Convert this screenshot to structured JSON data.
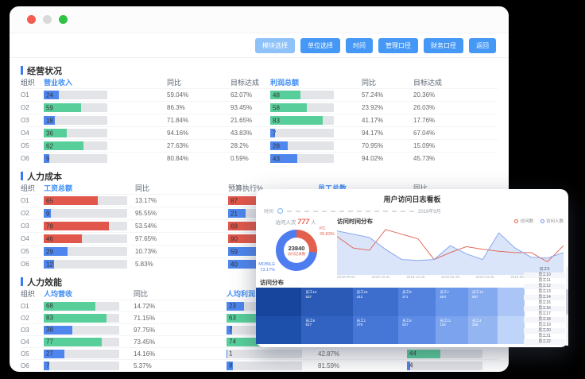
{
  "window": {
    "controls": [
      {
        "name": "close",
        "color": "red"
      },
      {
        "name": "minimize",
        "color": "gray"
      },
      {
        "name": "maximize",
        "color": "green"
      }
    ],
    "toolbar": {
      "buttons": [
        {
          "label": "模块选择",
          "variant": "light"
        },
        {
          "label": "单位选择"
        },
        {
          "label": "时间"
        },
        {
          "label": "管理口径"
        },
        {
          "label": "财务口径"
        },
        {
          "label": "返回"
        }
      ]
    }
  },
  "sections": [
    {
      "id": "business-status",
      "title": "经营状况",
      "grid": "g1",
      "cls": "s1",
      "headers": [
        {
          "label": "组织"
        },
        {
          "label": "营业收入",
          "accent": true
        },
        {
          "label": "同比"
        },
        {
          "label": "目标达成"
        },
        {
          "label": "利润总额",
          "accent": true
        },
        {
          "label": "同比"
        },
        {
          "label": "目标达成"
        }
      ],
      "rows": [
        {
          "org": "O1",
          "cells": [
            {
              "k": "bar",
              "v": 24,
              "c": "blue"
            },
            {
              "k": "txt",
              "v": "59.04%"
            },
            {
              "k": "txt",
              "v": "62.07%"
            },
            {
              "k": "bar",
              "v": 48,
              "c": "green"
            },
            {
              "k": "txt",
              "v": "57.24%"
            },
            {
              "k": "txt",
              "v": "20.36%"
            }
          ]
        },
        {
          "org": "O2",
          "cells": [
            {
              "k": "bar",
              "v": 59,
              "c": "green"
            },
            {
              "k": "txt",
              "v": "86.3%"
            },
            {
              "k": "txt",
              "v": "93.45%"
            },
            {
              "k": "bar",
              "v": 58,
              "c": "green"
            },
            {
              "k": "txt",
              "v": "23.92%"
            },
            {
              "k": "txt",
              "v": "26.03%"
            }
          ]
        },
        {
          "org": "O3",
          "cells": [
            {
              "k": "bar",
              "v": 18,
              "c": "blue"
            },
            {
              "k": "txt",
              "v": "71.84%"
            },
            {
              "k": "txt",
              "v": "21.65%"
            },
            {
              "k": "bar",
              "v": 83,
              "c": "green"
            },
            {
              "k": "txt",
              "v": "41.17%"
            },
            {
              "k": "txt",
              "v": "17.76%"
            }
          ]
        },
        {
          "org": "O4",
          "cells": [
            {
              "k": "bar",
              "v": 36,
              "c": "green"
            },
            {
              "k": "txt",
              "v": "94.16%"
            },
            {
              "k": "txt",
              "v": "43.83%"
            },
            {
              "k": "bar",
              "v": 7,
              "c": "blue"
            },
            {
              "k": "txt",
              "v": "94.17%"
            },
            {
              "k": "txt",
              "v": "67.04%"
            }
          ]
        },
        {
          "org": "O5",
          "cells": [
            {
              "k": "bar",
              "v": 62,
              "c": "green"
            },
            {
              "k": "txt",
              "v": "27.63%"
            },
            {
              "k": "txt",
              "v": "28.2%"
            },
            {
              "k": "bar",
              "v": 28,
              "c": "blue"
            },
            {
              "k": "txt",
              "v": "70.95%"
            },
            {
              "k": "txt",
              "v": "15.09%"
            }
          ]
        },
        {
          "org": "O6",
          "cells": [
            {
              "k": "bar",
              "v": 9,
              "c": "blue"
            },
            {
              "k": "txt",
              "v": "80.84%"
            },
            {
              "k": "txt",
              "v": "0.59%"
            },
            {
              "k": "bar",
              "v": 43,
              "c": "blue"
            },
            {
              "k": "txt",
              "v": "94.02%"
            },
            {
              "k": "txt",
              "v": "45.73%"
            }
          ]
        }
      ]
    },
    {
      "id": "hr-cost",
      "title": "人力成本",
      "grid": "g2",
      "cls": "s2",
      "headers": [
        {
          "label": "组织"
        },
        {
          "label": "工资总额",
          "accent": true
        },
        {
          "label": "同比"
        },
        {
          "label": "预算执行%"
        },
        {
          "label": "员工总数",
          "accent": true
        },
        {
          "label": "同比"
        }
      ],
      "rows": [
        {
          "org": "O1",
          "cells": [
            {
              "k": "bar",
              "v": 65,
              "c": "red"
            },
            {
              "k": "txt",
              "v": "13.17%"
            },
            {
              "k": "bar",
              "v": 87,
              "c": "red"
            },
            {
              "k": "none"
            },
            {
              "k": "none"
            }
          ]
        },
        {
          "org": "O2",
          "cells": [
            {
              "k": "bar",
              "v": 9,
              "c": "blue"
            },
            {
              "k": "txt",
              "v": "95.55%"
            },
            {
              "k": "bar",
              "v": 21,
              "c": "blue"
            },
            {
              "k": "none"
            },
            {
              "k": "none"
            }
          ]
        },
        {
          "org": "O3",
          "cells": [
            {
              "k": "bar",
              "v": 78,
              "c": "red"
            },
            {
              "k": "txt",
              "v": "53.54%"
            },
            {
              "k": "bar",
              "v": 69,
              "c": "red"
            },
            {
              "k": "none"
            },
            {
              "k": "none"
            }
          ]
        },
        {
          "org": "O4",
          "cells": [
            {
              "k": "bar",
              "v": 46,
              "c": "red"
            },
            {
              "k": "txt",
              "v": "97.65%"
            },
            {
              "k": "bar",
              "v": 90,
              "c": "red"
            },
            {
              "k": "none"
            },
            {
              "k": "none"
            }
          ]
        },
        {
          "org": "O5",
          "cells": [
            {
              "k": "bar",
              "v": 29,
              "c": "blue"
            },
            {
              "k": "txt",
              "v": "10.73%"
            },
            {
              "k": "bar",
              "v": 59,
              "c": "blue"
            },
            {
              "k": "none"
            },
            {
              "k": "none"
            }
          ]
        },
        {
          "org": "O6",
          "cells": [
            {
              "k": "bar",
              "v": 12,
              "c": "blue"
            },
            {
              "k": "txt",
              "v": "5.83%"
            },
            {
              "k": "bar",
              "v": 40,
              "c": "blue"
            },
            {
              "k": "none"
            },
            {
              "k": "none"
            }
          ]
        }
      ]
    },
    {
      "id": "hr-efficiency",
      "title": "人力效能",
      "grid": "g3",
      "cls": "s3",
      "headers": [
        {
          "label": "组织"
        },
        {
          "label": "人均营收",
          "accent": true
        },
        {
          "label": "同比"
        },
        {
          "label": "人均利润",
          "accent": true
        },
        {
          "label": ""
        },
        {
          "label": ""
        }
      ],
      "rows": [
        {
          "org": "O1",
          "cells": [
            {
              "k": "bar",
              "v": 68,
              "c": "green"
            },
            {
              "k": "txt",
              "v": "14.72%"
            },
            {
              "k": "bar",
              "v": 23,
              "c": "blue"
            },
            {
              "k": "txt",
              "v": ""
            },
            {
              "k": "none"
            }
          ]
        },
        {
          "org": "O2",
          "cells": [
            {
              "k": "bar",
              "v": 83,
              "c": "green"
            },
            {
              "k": "txt",
              "v": "71.15%"
            },
            {
              "k": "bar",
              "v": 63,
              "c": "green"
            },
            {
              "k": "txt",
              "v": ""
            },
            {
              "k": "none"
            }
          ]
        },
        {
          "org": "O3",
          "cells": [
            {
              "k": "bar",
              "v": 38,
              "c": "blue"
            },
            {
              "k": "txt",
              "v": "97.75%"
            },
            {
              "k": "bar",
              "v": 7,
              "c": "blue"
            },
            {
              "k": "txt",
              "v": ""
            },
            {
              "k": "none"
            }
          ]
        },
        {
          "org": "O4",
          "cells": [
            {
              "k": "bar",
              "v": 77,
              "c": "green"
            },
            {
              "k": "txt",
              "v": "73.45%"
            },
            {
              "k": "bar",
              "v": 74,
              "c": "green"
            },
            {
              "k": "txt",
              "v": ""
            },
            {
              "k": "none"
            }
          ]
        },
        {
          "org": "O5",
          "cells": [
            {
              "k": "bar",
              "v": 27,
              "c": "blue"
            },
            {
              "k": "txt",
              "v": "14.16%"
            },
            {
              "k": "bar",
              "v": 1,
              "c": "blue"
            },
            {
              "k": "txt",
              "v": "42.87%"
            },
            {
              "k": "bar",
              "v": 44,
              "c": "green"
            }
          ]
        },
        {
          "org": "O6",
          "cells": [
            {
              "k": "bar",
              "v": 7,
              "c": "blue"
            },
            {
              "k": "txt",
              "v": "5.37%"
            },
            {
              "k": "bar",
              "v": 8,
              "c": "blue"
            },
            {
              "k": "txt",
              "v": "81.59%"
            },
            {
              "k": "bar",
              "v": 4,
              "c": "blue"
            }
          ]
        }
      ]
    }
  ],
  "overlay": {
    "title": "用户访问日志看板",
    "time_filter": {
      "label": "时间",
      "date": "2019年9月"
    },
    "visits_stat": {
      "label": "访问人次",
      "value": "777",
      "unit": "人"
    },
    "device_donut": {
      "center_value": "23840",
      "center_label": "访问记录数",
      "slices": [
        {
          "name": "PC",
          "pct": "26.83%",
          "color": "#e4604e"
        },
        {
          "name": "MOBILE",
          "pct": "73.17%",
          "color": "#4e7df0"
        }
      ]
    },
    "time_chart": {
      "type": "line",
      "title": "访问时间分布",
      "legend": [
        {
          "label": "访问数",
          "color": "#e4604e"
        },
        {
          "label": "访问人数",
          "color": "#6c92ee"
        }
      ],
      "x_labels": [
        "2018-09-01",
        "2018-10-31",
        "2018-12-30",
        "2019-02-28",
        "2019-04-29",
        "2019-06-28",
        "2019-08-27"
      ],
      "series": [
        {
          "name": "访问数",
          "color": "#e26b60",
          "area": false,
          "values": [
            80,
            55,
            50,
            95,
            85,
            75,
            30,
            45,
            58,
            52,
            48,
            45,
            45,
            25,
            60
          ]
        },
        {
          "name": "访问人数",
          "color": "#8aa8f0",
          "area": true,
          "fill": "#dbe5f9",
          "values": [
            92,
            85,
            78,
            52,
            30,
            28,
            30,
            60,
            42,
            30,
            88,
            55,
            35,
            33,
            45
          ]
        }
      ]
    },
    "distribution": {
      "title": "访问分布",
      "treemap": {
        "rows": [
          [
            {
              "n": "",
              "v": "",
              "color": "#17449c",
              "w": 17
            },
            {
              "n": "员工12",
              "v": "537",
              "color": "#2a59b6",
              "w": 19
            },
            {
              "n": "员工14",
              "v": "412",
              "color": "#3d6ecd",
              "w": 17
            },
            {
              "n": "员工8",
              "v": "371",
              "color": "#5181dd",
              "w": 14
            },
            {
              "n": "员工7",
              "v": "604",
              "color": "#6a97e9",
              "w": 12
            },
            {
              "n": "员工13",
              "v": "587",
              "color": "#83a9ef",
              "w": 11
            },
            {
              "n": "",
              "v": "",
              "color": "#abc6f6",
              "w": 10
            }
          ],
          [
            {
              "n": "",
              "v": "",
              "color": "#1d50aa",
              "w": 17
            },
            {
              "n": "员工9",
              "v": "527",
              "color": "#3263c2",
              "w": 19
            },
            {
              "n": "员工1",
              "v": "479",
              "color": "#4677d6",
              "w": 17
            },
            {
              "n": "员工6",
              "v": "647",
              "color": "#5c8ae4",
              "w": 14
            },
            {
              "n": "员工11",
              "v": "118",
              "color": "#7ba3ee",
              "w": 12
            },
            {
              "n": "员工4",
              "v": "255",
              "color": "#93b6f3",
              "w": 11
            },
            {
              "n": "",
              "v": "",
              "color": "#bed5f9",
              "w": 10
            }
          ]
        ]
      }
    },
    "employee_list": {
      "items": [
        "员工9",
        "员工10",
        "员工11",
        "员工12",
        "员工13",
        "员工14",
        "员工15",
        "员工16",
        "员工17",
        "员工18",
        "员工19",
        "员工20",
        "员工21",
        "员工22"
      ]
    }
  }
}
